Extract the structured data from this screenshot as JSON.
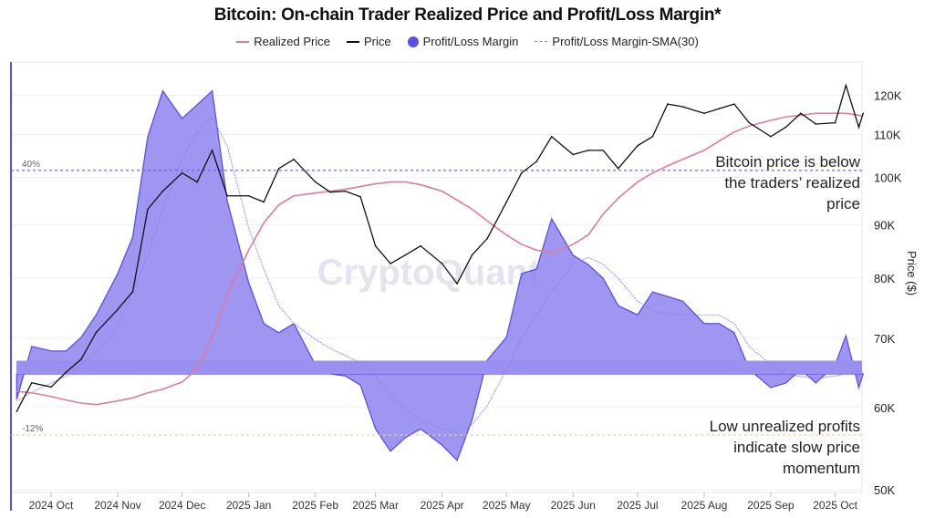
{
  "chart_data": {
    "type": "line",
    "title": "Bitcoin: On-chain Trader Realized Price and Profit/Loss Margin*",
    "legend": [
      {
        "name": "Realized Price",
        "color": "#e0799a",
        "style": "line"
      },
      {
        "name": "Price",
        "color": "#111111",
        "style": "line"
      },
      {
        "name": "Profit/Loss Margin",
        "color": "#5b4ee6",
        "style": "area"
      },
      {
        "name": "Profit/Loss Margin-SMA(30)",
        "color": "#8a80f0",
        "style": "thin-line"
      }
    ],
    "legend_position": "top",
    "right_axis": {
      "label": "Price ($)",
      "scale": "log",
      "ticks": [
        "50K",
        "60K",
        "70K",
        "80K",
        "90K",
        "100K",
        "110K",
        "120K"
      ],
      "tick_values": [
        50,
        60,
        70,
        80,
        90,
        100,
        110,
        120
      ]
    },
    "x_ticks": [
      "2024 Oct",
      "2024 Nov",
      "2024 Dec",
      "2025 Jan",
      "2025 Feb",
      "2025 Mar",
      "2025 Apr",
      "2025 May",
      "2025 Jun",
      "2025 Jul",
      "2025 Aug",
      "2025 Sep",
      "2025 Oct"
    ],
    "x_tick_dates": [
      "2024-10-01",
      "2024-11-01",
      "2024-12-01",
      "2025-01-01",
      "2025-02-01",
      "2025-03-01",
      "2025-04-01",
      "2025-05-01",
      "2025-06-01",
      "2025-07-01",
      "2025-08-01",
      "2025-09-01",
      "2025-10-01"
    ],
    "reference_lines": [
      {
        "label": "40%",
        "value": 40,
        "color": "#6a5ae8"
      },
      {
        "label": "-12%",
        "value": -12,
        "color": "#e8d27a"
      }
    ],
    "annotations": [
      "Bitcoin price is below the traders' realized price",
      "Low unrealized profits indicate slow price momentum"
    ],
    "annotation_lines": [
      [
        "Bitcoin price is below",
        "the traders’ realized",
        "price"
      ],
      [
        "Low unrealized profits",
        "indicate slow price",
        "momentum"
      ]
    ],
    "watermark": "CryptoQuant",
    "x": [
      "2024-09-15",
      "2024-09-22",
      "2024-10-01",
      "2024-10-08",
      "2024-10-15",
      "2024-10-22",
      "2024-11-01",
      "2024-11-08",
      "2024-11-15",
      "2024-11-22",
      "2024-12-01",
      "2024-12-08",
      "2024-12-15",
      "2024-12-22",
      "2025-01-01",
      "2025-01-08",
      "2025-01-15",
      "2025-01-22",
      "2025-02-01",
      "2025-02-08",
      "2025-02-15",
      "2025-02-22",
      "2025-03-01",
      "2025-03-08",
      "2025-03-15",
      "2025-03-22",
      "2025-04-01",
      "2025-04-08",
      "2025-04-15",
      "2025-04-22",
      "2025-05-01",
      "2025-05-08",
      "2025-05-15",
      "2025-05-22",
      "2025-06-01",
      "2025-06-08",
      "2025-06-15",
      "2025-06-22",
      "2025-07-01",
      "2025-07-08",
      "2025-07-15",
      "2025-07-22",
      "2025-08-01",
      "2025-08-08",
      "2025-08-15",
      "2025-08-22",
      "2025-09-01",
      "2025-09-08",
      "2025-09-15",
      "2025-09-22",
      "2025-10-01",
      "2025-10-06",
      "2025-10-12",
      "2025-10-14"
    ],
    "series": [
      {
        "name": "Price",
        "unit": "K USD",
        "values": [
          59.5,
          63.4,
          62.8,
          64.9,
          66.8,
          70.9,
          74.6,
          77.6,
          93.2,
          97,
          101,
          99,
          106.2,
          96,
          96,
          94.7,
          102,
          104.1,
          99,
          96.8,
          97,
          95.8,
          85.9,
          82.6,
          84.2,
          85.9,
          82.6,
          79,
          84.2,
          87.3,
          94.7,
          101,
          103.6,
          109.5,
          105.2,
          106.2,
          106.2,
          102,
          107.3,
          109.5,
          117.7,
          117,
          115.3,
          116.5,
          117.7,
          112.9,
          109.5,
          111.8,
          115.3,
          112.6,
          112.9,
          122.7,
          111.8,
          115.3
        ]
      },
      {
        "name": "Realized Price",
        "unit": "K USD",
        "values": [
          62.2,
          62,
          61.5,
          61,
          60.6,
          60.4,
          60.9,
          61.3,
          62,
          62.5,
          63.5,
          65.4,
          70.3,
          77,
          85.1,
          90.4,
          94.1,
          96,
          96.6,
          97,
          97.4,
          98,
          98.6,
          99,
          99,
          98.4,
          97,
          95.1,
          93.2,
          90.8,
          88,
          86.2,
          85.1,
          84.6,
          86.2,
          88,
          92.2,
          95.5,
          99,
          101,
          102.6,
          104.1,
          106.2,
          108.4,
          110.6,
          112.1,
          113.5,
          114.4,
          114.8,
          115.3,
          115.3,
          115.3,
          114.8,
          114.6
        ]
      },
      {
        "name": "Profit/Loss Margin",
        "unit": "%",
        "values": [
          -5,
          5.4,
          4.5,
          4.5,
          7.2,
          11.6,
          19.7,
          26.9,
          46.6,
          55.6,
          50.2,
          52.9,
          55.6,
          34,
          17.9,
          9.9,
          8.1,
          9.9,
          1.8,
          0,
          -0.4,
          -2.2,
          -10.8,
          -15.2,
          -12.5,
          -10.8,
          -14,
          -17,
          -9,
          2.7,
          7.2,
          19.7,
          20.6,
          30.5,
          23.3,
          21.5,
          18.8,
          13.4,
          11.6,
          16.1,
          15.2,
          14.3,
          9.9,
          9.9,
          8.1,
          0.9,
          -2.7,
          -1.8,
          0.9,
          -1.8,
          1.8,
          7.5,
          -2.7,
          0
        ]
      },
      {
        "name": "Profit/Loss Margin-SMA(30)",
        "unit": "%",
        "values": [
          -5.4,
          -3.6,
          -1.8,
          -0.4,
          1.8,
          4.5,
          9,
          16.1,
          23.3,
          32.3,
          42.1,
          47.5,
          50.5,
          44.8,
          28.7,
          20.6,
          13.4,
          9.9,
          6.8,
          5,
          3.6,
          2.2,
          -0.4,
          -3.9,
          -7.2,
          -9,
          -10.8,
          -11.6,
          -9.9,
          -6.3,
          0.9,
          7.2,
          11.6,
          16.1,
          21.5,
          22.9,
          21.5,
          18.8,
          14.3,
          12.5,
          11.8,
          11.6,
          11.6,
          11.6,
          9.9,
          5.4,
          1.8,
          0,
          -0.5,
          -0.9,
          -0.4,
          0,
          0.5,
          0.4
        ]
      }
    ],
    "grid": true
  }
}
